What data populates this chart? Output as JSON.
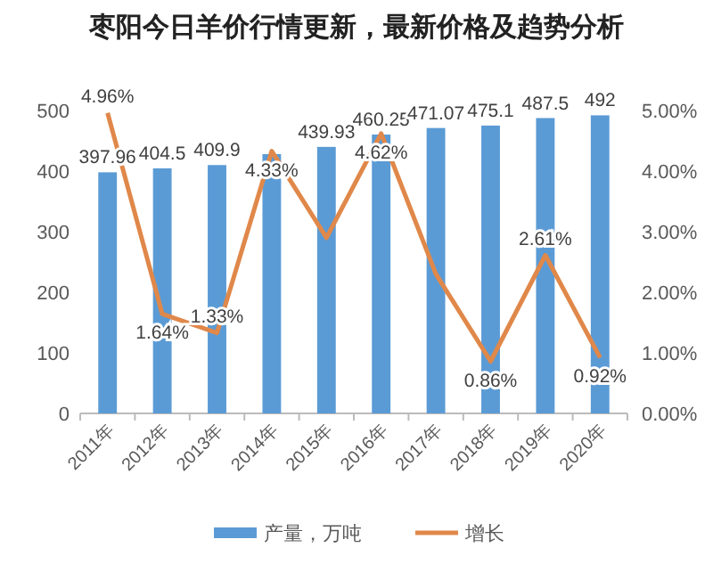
{
  "chart_data": {
    "type": "bar",
    "title": "枣阳今日羊价行情更新，最新价格及趋势分析",
    "categories": [
      "2011年",
      "2012年",
      "2013年",
      "2014年",
      "2015年",
      "2016年",
      "2017年",
      "2018年",
      "2019年",
      "2020年"
    ],
    "series": [
      {
        "name": "产量，万吨",
        "color": "#5b9bd5",
        "values": [
          397.96,
          404.5,
          409.9,
          428,
          439.93,
          460.25,
          471.07,
          475.1,
          487.5,
          492
        ],
        "value_labels": [
          "397.96",
          "404.5",
          "409.9",
          null,
          "439.93",
          "460.25",
          "471.07",
          "475.1",
          "487.5",
          "492"
        ]
      },
      {
        "name": "增长",
        "type": "line",
        "axis": "y2",
        "color": "#e0884a",
        "values": [
          4.96,
          1.64,
          1.33,
          4.33,
          2.9,
          4.62,
          2.3,
          0.86,
          2.61,
          0.92
        ],
        "value_labels": [
          "4.96%",
          "1.64%",
          "1.33%",
          "4.33%",
          null,
          "4.62%",
          null,
          "0.86%",
          "2.61%",
          "0.92%"
        ]
      }
    ],
    "ylim": [
      0,
      500
    ],
    "yticks": [
      0,
      100,
      200,
      300,
      400,
      500
    ],
    "y2lim": [
      0,
      5
    ],
    "y2ticks": [
      {
        "value": 0,
        "label": "0.00%"
      },
      {
        "value": 1,
        "label": "1.00%"
      },
      {
        "value": 2,
        "label": "2.00%"
      },
      {
        "value": 3,
        "label": "3.00%"
      },
      {
        "value": 4,
        "label": "4.00%"
      },
      {
        "value": 5,
        "label": "5.00%"
      }
    ],
    "legend": "bottom",
    "grid": false
  }
}
